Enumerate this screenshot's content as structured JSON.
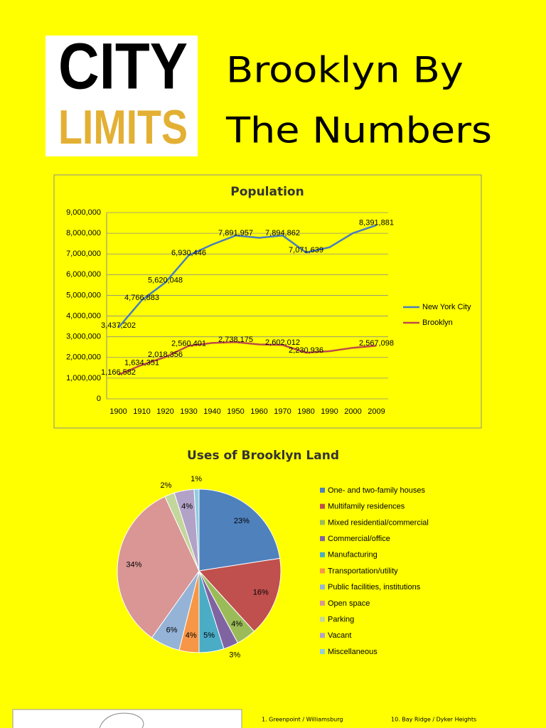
{
  "header": {
    "logo_top": "CITY",
    "logo_bottom": "LIMITS",
    "title_line1": "Brooklyn By",
    "title_line2": "The Numbers"
  },
  "chart_data": [
    {
      "type": "line",
      "title": "Population",
      "categories": [
        "1900",
        "1910",
        "1920",
        "1930",
        "1940",
        "1950",
        "1960",
        "1970",
        "1980",
        "1990",
        "2000",
        "2009"
      ],
      "series": [
        {
          "name": "New York City",
          "color": "#4a7ebb",
          "values": [
            3437202,
            4766883,
            5620048,
            6930446,
            7454995,
            7891957,
            7781984,
            7894862,
            7071639,
            7322564,
            8008278,
            8391881
          ],
          "value_labels": [
            "3,437,202",
            "4,766,883",
            "5,620,048",
            "6,930,446",
            null,
            "7,891,957",
            null,
            "7,894,862",
            "7,071,639",
            null,
            null,
            "8,391,881"
          ]
        },
        {
          "name": "Brooklyn",
          "color": "#be4b48",
          "values": [
            1166582,
            1634351,
            2018356,
            2560401,
            2698285,
            2738175,
            2627319,
            2602012,
            2230936,
            2300664,
            2465326,
            2567098
          ],
          "value_labels": [
            "1,166,582",
            "1,634,351",
            "2,018,356",
            "2,560,401",
            null,
            "2,738,175",
            null,
            "2,602,012",
            "2,230,936",
            null,
            null,
            "2,567,098"
          ]
        }
      ],
      "ylim": [
        0,
        9000000
      ],
      "yticks": [
        0,
        {
          "value": 1000000,
          "label": "1,000,000"
        },
        {
          "value": 2000000,
          "label": "2,000,000"
        },
        {
          "value": 3000000,
          "label": "3,000,000"
        },
        {
          "value": 4000000,
          "label": "4,000,000"
        },
        {
          "value": 5000000,
          "label": "5,000,000"
        },
        {
          "value": 6000000,
          "label": "6,000,000"
        },
        {
          "value": 7000000,
          "label": "7,000,000"
        },
        {
          "value": 8000000,
          "label": "8,000,000"
        },
        {
          "value": 9000000,
          "label": "9,000,000"
        }
      ],
      "grid": true,
      "legend": "right"
    },
    {
      "type": "pie",
      "title": "Uses of Brooklyn Land",
      "categories": [
        "One- and two-family houses",
        "Multifamily residences",
        "Mixed residential/commercial",
        "Commercial/office",
        "Manufacturing",
        "Transportation/utility",
        "Public facilities, institutions",
        "Open space",
        "Parking",
        "Vacant",
        "Miscellaneous"
      ],
      "values": [
        23,
        16,
        4,
        3,
        5,
        4,
        6,
        34,
        2,
        4,
        1
      ],
      "value_labels": [
        "23%",
        "16%",
        "4%",
        "3%",
        "5%",
        "4%",
        "6%",
        "34%",
        "2%",
        "4%",
        "1%"
      ],
      "colors": [
        "#4f81bd",
        "#c0504d",
        "#9bbb59",
        "#8064a2",
        "#4bacc6",
        "#f79646",
        "#95b3d7",
        "#d99694",
        "#c3d69b",
        "#b3a2c7",
        "#93cddd"
      ],
      "legend": "right"
    }
  ],
  "map_labels": [
    "1. Greenpoint / Williamsburg",
    "10. Bay Ridge / Dyker Heights"
  ]
}
